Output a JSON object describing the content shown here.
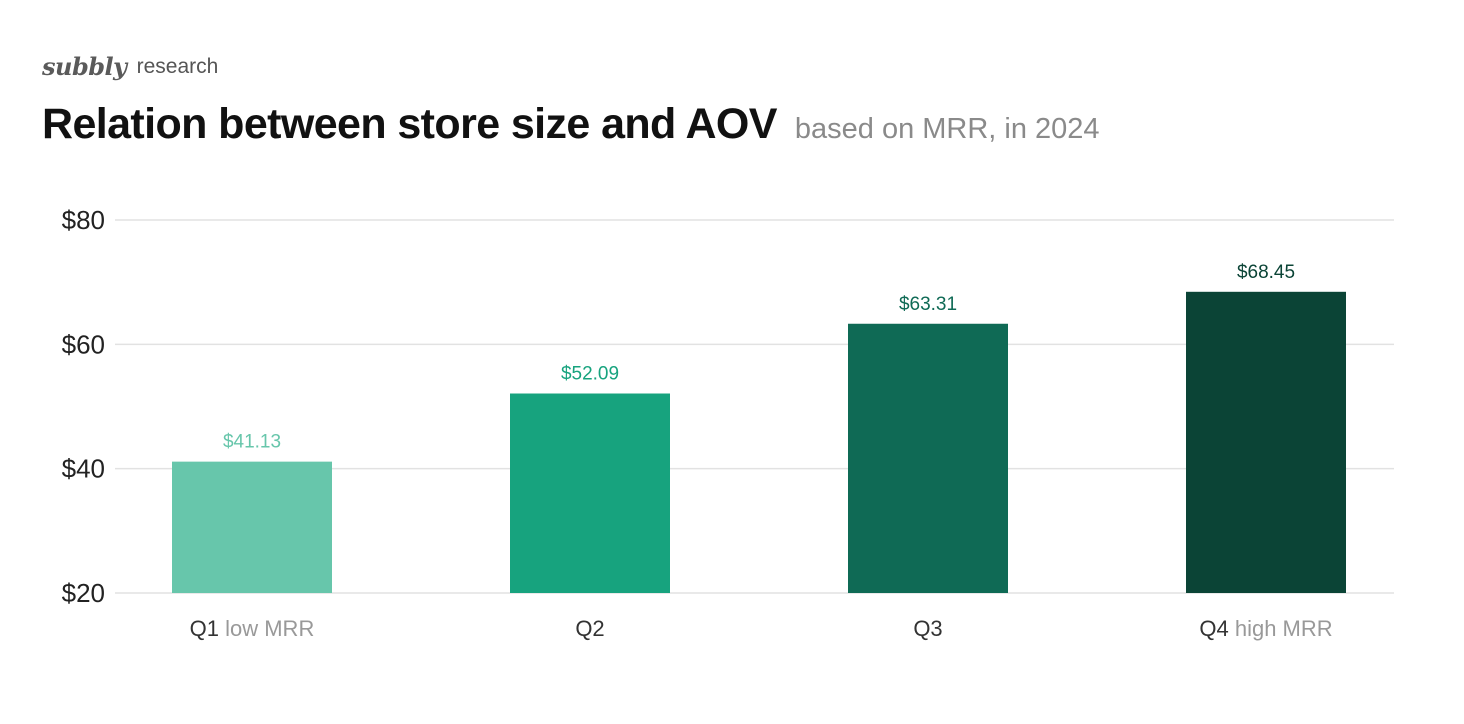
{
  "brand": {
    "logo": "subbly",
    "sub": "research"
  },
  "colors": {
    "q1": "#67c6ab",
    "q2": "#17a37e",
    "q3": "#0f6a55",
    "q4": "#0b4436",
    "grid": "#e2e2e2"
  },
  "chart_data": {
    "type": "bar",
    "title": "Relation between store size and AOV",
    "subtitle": "based on MRR, in 2024",
    "xlabel": "",
    "ylabel": "",
    "ylim": [
      20,
      80
    ],
    "yticks": [
      20,
      40,
      60,
      80
    ],
    "ytick_labels": [
      "$20",
      "$40",
      "$60",
      "$80"
    ],
    "grid": true,
    "categories": [
      {
        "main": "Q1",
        "sub": "low MRR"
      },
      {
        "main": "Q2",
        "sub": ""
      },
      {
        "main": "Q3",
        "sub": ""
      },
      {
        "main": "Q4",
        "sub": "high MRR"
      }
    ],
    "values": [
      41.13,
      52.09,
      63.31,
      68.45
    ],
    "value_labels": [
      "$41.13",
      "$52.09",
      "$63.31",
      "$68.45"
    ],
    "bar_colors": [
      "#67c6ab",
      "#17a37e",
      "#0f6a55",
      "#0b4436"
    ],
    "label_colors": [
      "#67c6ab",
      "#17a37e",
      "#0f6a55",
      "#0b4436"
    ]
  }
}
